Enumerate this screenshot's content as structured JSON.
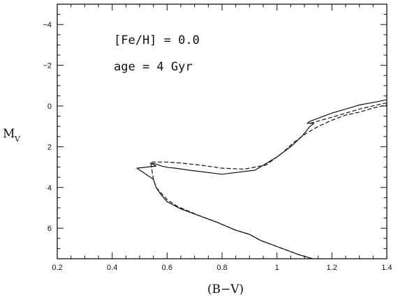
{
  "chart_data": {
    "type": "line",
    "title": "",
    "xlabel": "(B−V)",
    "ylabel": {
      "main": "M",
      "sub": "V"
    },
    "xlim": [
      0.2,
      1.4
    ],
    "ylim": [
      7.5,
      -5
    ],
    "y_inverted": true,
    "grid": false,
    "xticks": [
      0.2,
      0.4,
      0.6,
      0.8,
      1,
      1.2,
      1.4
    ],
    "xtick_labels": [
      "0.2",
      "0.4",
      "0.6",
      "0.8",
      "1",
      "1.2",
      "1.4"
    ],
    "yticks": [
      -4,
      -2,
      0,
      2,
      4,
      6
    ],
    "ytick_labels": [
      "−4",
      "−2",
      "0",
      "2",
      "4",
      "6"
    ],
    "annotations": [
      "[Fe/H] = 0.0",
      "age = 4 Gyr"
    ],
    "series": [
      {
        "style": "solid",
        "x": [
          1.13,
          1.08,
          1.0,
          0.94,
          0.9,
          0.85,
          0.78,
          0.72,
          0.65,
          0.6,
          0.575,
          0.56,
          0.55,
          0.49,
          0.56,
          0.54,
          0.56,
          0.58,
          0.605,
          0.63,
          0.68,
          0.8,
          0.92,
          1.0,
          1.05,
          1.09,
          1.12,
          1.135,
          1.11,
          1.12,
          1.2,
          1.3,
          1.36,
          1.4
        ],
        "y": [
          7.5,
          7.3,
          6.9,
          6.6,
          6.3,
          6.1,
          5.7,
          5.4,
          5.05,
          4.7,
          4.3,
          4.0,
          3.6,
          3.05,
          2.95,
          2.8,
          2.85,
          2.95,
          3.02,
          3.05,
          3.15,
          3.35,
          3.15,
          2.5,
          2.0,
          1.5,
          1.0,
          0.85,
          0.85,
          0.75,
          0.35,
          -0.05,
          -0.2,
          -0.3
        ]
      },
      {
        "style": "dashed",
        "x": [
          1.13,
          1.08,
          1.0,
          0.94,
          0.9,
          0.85,
          0.78,
          0.72,
          0.64,
          0.6,
          0.58,
          0.56,
          0.55,
          0.54,
          0.56,
          0.6,
          0.65,
          0.72,
          0.8,
          0.88,
          0.96,
          1.02,
          1.06,
          1.1,
          1.15,
          1.2,
          1.25,
          1.3,
          1.35,
          1.4
        ],
        "y": [
          7.5,
          7.3,
          6.9,
          6.6,
          6.3,
          6.1,
          5.7,
          5.4,
          4.95,
          4.6,
          4.3,
          4.0,
          3.6,
          2.75,
          2.75,
          2.75,
          2.8,
          2.9,
          3.05,
          3.1,
          2.9,
          2.3,
          1.8,
          1.4,
          1.0,
          0.7,
          0.45,
          0.3,
          0.1,
          -0.05
        ]
      },
      {
        "style": "dashed",
        "x": [
          1.12,
          1.2,
          1.3,
          1.38,
          1.4
        ],
        "y": [
          0.85,
          0.55,
          0.15,
          -0.1,
          -0.15
        ]
      }
    ]
  }
}
